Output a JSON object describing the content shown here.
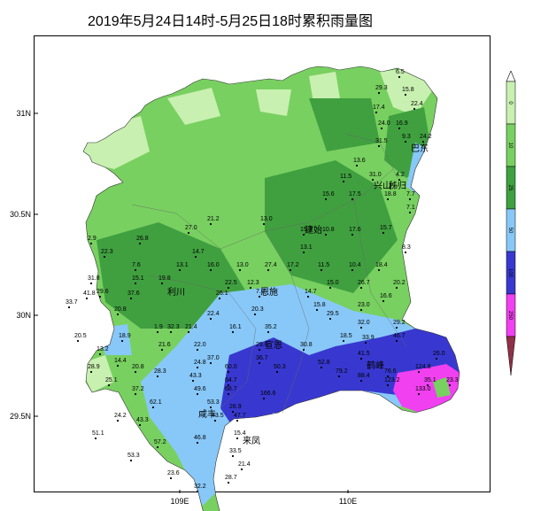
{
  "title": "2019年5月24日14时-5月25日18时累积雨量图",
  "legend": {
    "ticks": [
      "0",
      "10",
      "25",
      "50",
      "100",
      "250"
    ],
    "colors": [
      "#c8f0b0",
      "#78d060",
      "#40a040",
      "#88c8f8",
      "#3838d0",
      "#f040f0",
      "#903048"
    ]
  },
  "axes": {
    "y_ticks": [
      "31N",
      "30.5N",
      "30N",
      "29.5N"
    ],
    "x_ticks": [
      "109E",
      "110E"
    ]
  },
  "places": [
    "巴东",
    "秭归",
    "兴山",
    "建始",
    "利川",
    "恩施",
    "宣恩",
    "咸丰",
    "来凤",
    "鹤峰"
  ],
  "values": [
    "6.5",
    "29.3",
    "15.8",
    "17.4",
    "22.4",
    "24.0",
    "16.9",
    "31.5",
    "9.3",
    "24.2",
    "13.6",
    "11.5",
    "31.0",
    "4.2",
    "15.6",
    "17.5",
    "18.8",
    "7.7",
    "7.1",
    "21.2",
    "13.0",
    "27.0",
    "15.3",
    "10.8",
    "17.6",
    "15.7",
    "2.9",
    "26.8",
    "13.1",
    "8.3",
    "22.3",
    "14.7",
    "13.0",
    "27.4",
    "17.2",
    "11.5",
    "10.4",
    "18.4",
    "7.6",
    "13.1",
    "16.0",
    "12.3",
    "15.0",
    "26.7",
    "20.2",
    "31.8",
    "15.1",
    "19.8",
    "22.5",
    "7.0",
    "16.6",
    "29.6",
    "37.6",
    "26.1",
    "14.7",
    "33.7",
    "41.8",
    "20.3",
    "15.8",
    "23.0",
    "20.8",
    "22.4",
    "29.5",
    "32.0",
    "29.2",
    "1.9",
    "35.2",
    "46.7",
    "20.5",
    "18.9",
    "32.3",
    "21.4",
    "16.1",
    "18.5",
    "33.9",
    "13.2",
    "21.6",
    "22.0",
    "29.8",
    "30.8",
    "41.5",
    "14.4",
    "24.8",
    "37.0",
    "36.7",
    "52.8",
    "28.9",
    "20.8",
    "60.0",
    "50.3",
    "79.2",
    "88.4",
    "76.6",
    "124.8",
    "26.0",
    "25.1",
    "28.3",
    "43.3",
    "64.7",
    "123.2",
    "35.1",
    "37.2",
    "49.6",
    "68.7",
    "166.6",
    "133.0",
    "23.3",
    "62.1",
    "53.3",
    "26.9",
    "24.2",
    "43.3",
    "43.5",
    "47.7",
    "15.4",
    "51.1",
    "57.2",
    "46.8",
    "33.5",
    "53.3",
    "21.4",
    "28.7",
    "23.6",
    "32.2"
  ],
  "credit": ""
}
